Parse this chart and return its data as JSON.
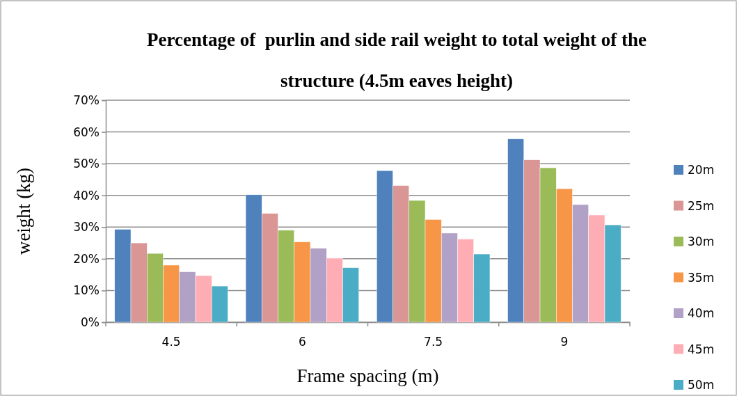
{
  "chart_data": {
    "type": "bar",
    "title": "Percentage of  purlin and side rail weight to total weight of the structure (4.5m eaves height)",
    "xlabel": "Frame spacing (m)",
    "ylabel": "weight (kg)",
    "categories": [
      "4.5",
      "6",
      "7.5",
      "9"
    ],
    "series": [
      {
        "name": "20m",
        "color": "#4f81bd",
        "values": [
          29.3,
          40.2,
          47.8,
          57.8
        ]
      },
      {
        "name": "25m",
        "color": "#d99694",
        "values": [
          25.0,
          34.3,
          43.1,
          51.2
        ]
      },
      {
        "name": "30m",
        "color": "#9bbb59",
        "values": [
          21.7,
          29.0,
          38.4,
          48.7
        ]
      },
      {
        "name": "35m",
        "color": "#f79646",
        "values": [
          18.0,
          25.3,
          32.4,
          42.1
        ]
      },
      {
        "name": "40m",
        "color": "#b2a1c7",
        "values": [
          15.9,
          23.3,
          28.1,
          37.1
        ]
      },
      {
        "name": "45m",
        "color": "#ffadb5",
        "values": [
          14.7,
          20.2,
          26.2,
          33.8
        ]
      },
      {
        "name": "50m",
        "color": "#4bacc6",
        "values": [
          11.4,
          17.2,
          21.5,
          30.7
        ]
      }
    ],
    "ylim": [
      0,
      70
    ],
    "yticks": [
      {
        "value": 0,
        "label": "0%"
      },
      {
        "value": 10,
        "label": "10%"
      },
      {
        "value": 20,
        "label": "20%"
      },
      {
        "value": 30,
        "label": "30%"
      },
      {
        "value": 40,
        "label": "40%"
      },
      {
        "value": 50,
        "label": "50%"
      },
      {
        "value": 60,
        "label": "60%"
      },
      {
        "value": 70,
        "label": "70%"
      }
    ],
    "grid": "y",
    "legend": "right"
  }
}
